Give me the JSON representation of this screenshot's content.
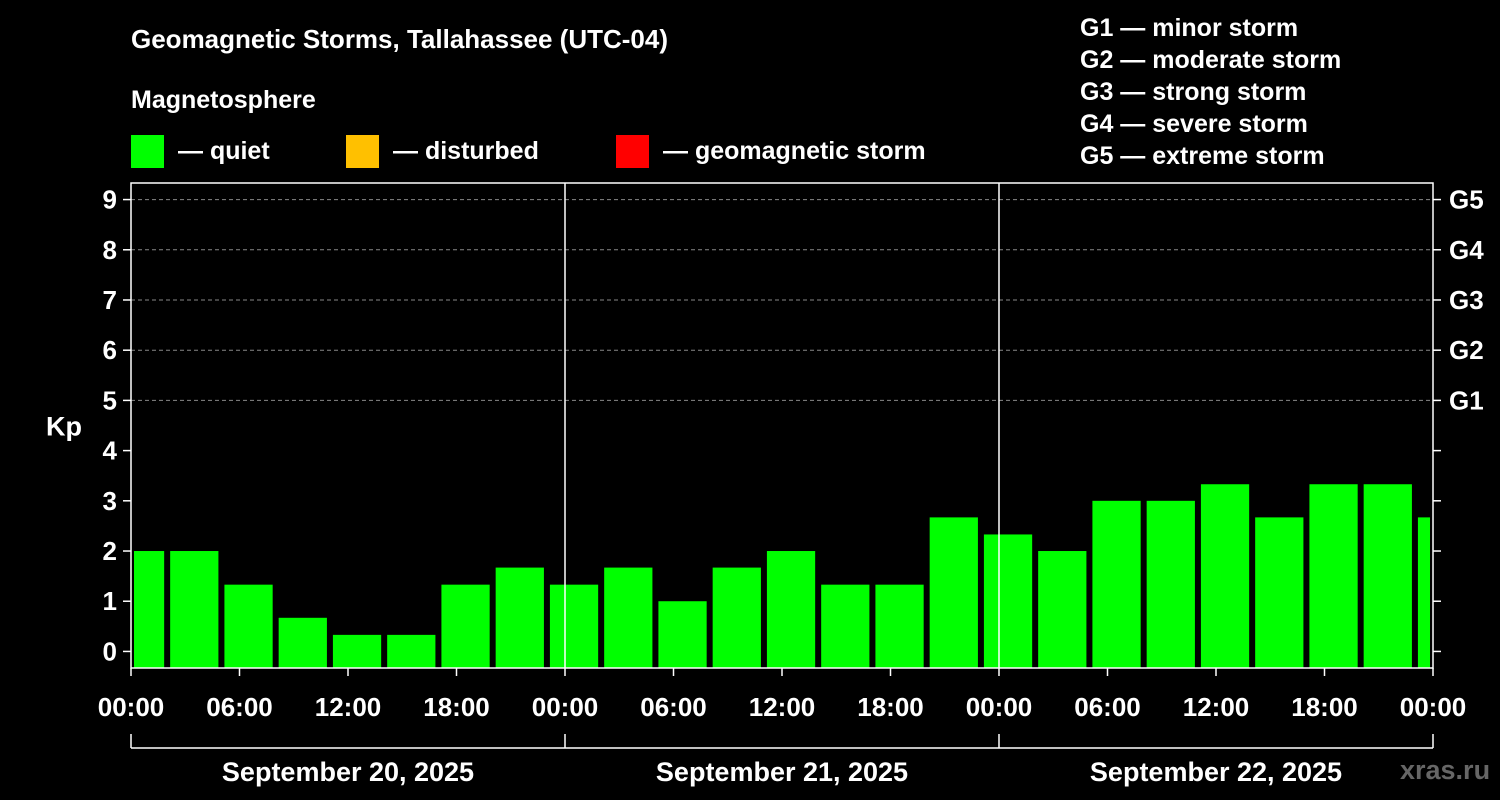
{
  "title": "Geomagnetic Storms, Tallahassee (UTC-04)",
  "magnetosphere": {
    "heading": "Magnetosphere",
    "legend": [
      {
        "label": "— quiet",
        "color": "#00ff00"
      },
      {
        "label": "— disturbed",
        "color": "#ffc000"
      },
      {
        "label": "— geomagnetic storm",
        "color": "#ff0000"
      }
    ]
  },
  "g_scale": [
    "G1 — minor storm",
    "G2 — moderate storm",
    "G3 — strong storm",
    "G4 — severe storm",
    "G5 — extreme storm"
  ],
  "watermark": "xras.ru",
  "chart_data": {
    "type": "bar",
    "ylabel": "Kp",
    "ylim": [
      -0.33,
      9.33
    ],
    "y_ticks": [
      0,
      1,
      2,
      3,
      4,
      5,
      6,
      7,
      8,
      9
    ],
    "right_ticks": [
      {
        "value": 5,
        "label": "G1"
      },
      {
        "value": 6,
        "label": "G2"
      },
      {
        "value": 7,
        "label": "G3"
      },
      {
        "value": 8,
        "label": "G4"
      },
      {
        "value": 9,
        "label": "G5"
      }
    ],
    "grid_lines": [
      5,
      6,
      7,
      8,
      9
    ],
    "x_range_hours": [
      0,
      72
    ],
    "x_tick_labels": [
      "00:00",
      "06:00",
      "12:00",
      "18:00",
      "00:00",
      "06:00",
      "12:00",
      "18:00",
      "00:00",
      "06:00",
      "12:00",
      "18:00",
      "00:00"
    ],
    "day_labels": [
      "September 20, 2025",
      "September 21, 2025",
      "September 22, 2025"
    ],
    "bar_color": "#00ff00",
    "bars": [
      {
        "start": 0,
        "end": 2,
        "kp": 2.0
      },
      {
        "start": 2,
        "end": 5,
        "kp": 2.0
      },
      {
        "start": 5,
        "end": 8,
        "kp": 1.33
      },
      {
        "start": 8,
        "end": 11,
        "kp": 0.67
      },
      {
        "start": 11,
        "end": 14,
        "kp": 0.33
      },
      {
        "start": 14,
        "end": 17,
        "kp": 0.33
      },
      {
        "start": 17,
        "end": 20,
        "kp": 1.33
      },
      {
        "start": 20,
        "end": 23,
        "kp": 1.67
      },
      {
        "start": 23,
        "end": 26,
        "kp": 1.33
      },
      {
        "start": 26,
        "end": 29,
        "kp": 1.67
      },
      {
        "start": 29,
        "end": 32,
        "kp": 1.0
      },
      {
        "start": 32,
        "end": 35,
        "kp": 1.67
      },
      {
        "start": 35,
        "end": 38,
        "kp": 2.0
      },
      {
        "start": 38,
        "end": 41,
        "kp": 1.33
      },
      {
        "start": 41,
        "end": 44,
        "kp": 1.33
      },
      {
        "start": 44,
        "end": 47,
        "kp": 2.67
      },
      {
        "start": 47,
        "end": 50,
        "kp": 2.33
      },
      {
        "start": 50,
        "end": 53,
        "kp": 2.0
      },
      {
        "start": 53,
        "end": 56,
        "kp": 3.0
      },
      {
        "start": 56,
        "end": 59,
        "kp": 3.0
      },
      {
        "start": 59,
        "end": 62,
        "kp": 3.33
      },
      {
        "start": 62,
        "end": 65,
        "kp": 2.67
      },
      {
        "start": 65,
        "end": 68,
        "kp": 3.33
      },
      {
        "start": 68,
        "end": 71,
        "kp": 3.33
      },
      {
        "start": 71,
        "end": 72,
        "kp": 2.67
      }
    ]
  }
}
